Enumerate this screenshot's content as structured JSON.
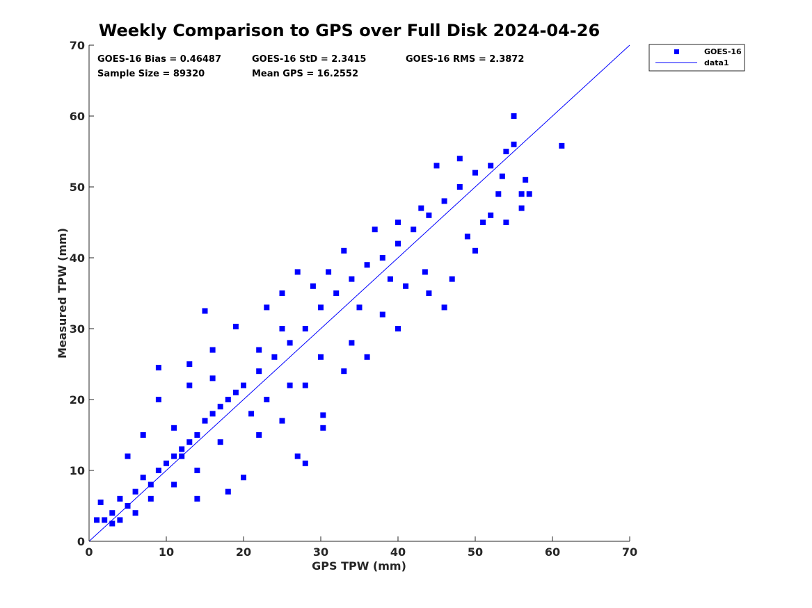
{
  "chart_data": {
    "type": "scatter",
    "title": "Weekly Comparison to GPS over Full Disk 2024-04-26",
    "xlabel": "GPS TPW (mm)",
    "ylabel": "Measured TPW (mm)",
    "xlim": [
      0,
      70
    ],
    "ylim": [
      0,
      70
    ],
    "xticks": [
      "0",
      "10",
      "20",
      "30",
      "40",
      "50",
      "60",
      "70"
    ],
    "yticks": [
      "0",
      "10",
      "20",
      "30",
      "40",
      "50",
      "60",
      "70"
    ],
    "grid": false,
    "legend_position": "outside-top-right",
    "legend": [
      "GOES-16",
      "data1"
    ],
    "colors": {
      "points": "#0000ff",
      "line": "#0000ff",
      "axes": "#262626"
    },
    "stats": {
      "bias": "GOES-16 Bias = 0.46487",
      "std": "GOES-16 StD = 2.3415",
      "rms": "GOES-16 RMS = 2.3872",
      "sample": "Sample Size = 89320",
      "mean": "Mean GPS = 16.2552"
    },
    "series": [
      {
        "name": "GOES-16",
        "marker": "square",
        "points": [
          [
            2,
            3
          ],
          [
            3,
            4
          ],
          [
            4,
            6
          ],
          [
            5,
            5
          ],
          [
            6,
            7
          ],
          [
            7,
            9
          ],
          [
            8,
            8
          ],
          [
            9,
            10
          ],
          [
            10,
            11
          ],
          [
            11,
            12
          ],
          [
            12,
            13
          ],
          [
            13,
            14
          ],
          [
            14,
            15
          ],
          [
            15,
            17
          ],
          [
            16,
            18
          ],
          [
            17,
            19
          ],
          [
            18,
            20
          ],
          [
            19,
            21
          ],
          [
            20,
            22
          ],
          [
            22,
            24
          ],
          [
            24,
            26
          ],
          [
            26,
            28
          ],
          [
            28,
            30
          ],
          [
            30,
            33
          ],
          [
            32,
            35
          ],
          [
            34,
            37
          ],
          [
            36,
            39
          ],
          [
            38,
            40
          ],
          [
            40,
            42
          ],
          [
            42,
            44
          ],
          [
            44,
            46
          ],
          [
            46,
            48
          ],
          [
            48,
            50
          ],
          [
            50,
            52
          ],
          [
            52,
            53
          ],
          [
            54,
            55
          ],
          [
            56,
            49
          ],
          [
            55,
            60
          ],
          [
            61.2,
            55.8
          ],
          [
            55,
            56
          ],
          [
            9,
            24.5
          ],
          [
            12,
            12
          ],
          [
            13,
            22
          ],
          [
            15,
            32.5
          ],
          [
            16,
            27
          ],
          [
            19,
            30.3
          ],
          [
            23,
            33
          ],
          [
            25,
            35
          ],
          [
            27,
            38
          ],
          [
            28,
            11
          ],
          [
            30.3,
            17.8
          ],
          [
            30.3,
            16
          ],
          [
            27,
            12
          ],
          [
            18,
            7
          ],
          [
            20,
            9
          ],
          [
            26,
            22
          ],
          [
            30,
            26
          ],
          [
            34,
            28
          ],
          [
            38,
            32
          ],
          [
            41,
            36
          ],
          [
            43.5,
            38
          ],
          [
            46,
            33
          ],
          [
            49,
            43
          ],
          [
            51,
            45
          ],
          [
            53,
            49
          ],
          [
            57,
            49
          ],
          [
            45,
            53
          ],
          [
            48,
            54
          ],
          [
            40,
            45
          ],
          [
            43,
            47
          ],
          [
            37,
            44
          ],
          [
            33,
            41
          ],
          [
            31,
            38
          ],
          [
            29,
            36
          ],
          [
            35,
            33
          ],
          [
            39,
            37
          ],
          [
            25,
            30
          ],
          [
            22,
            27
          ],
          [
            21,
            18
          ],
          [
            23,
            20
          ],
          [
            17,
            14
          ],
          [
            14,
            10
          ],
          [
            11,
            8
          ],
          [
            8,
            6
          ],
          [
            6,
            4
          ],
          [
            4,
            3
          ],
          [
            3,
            2.5
          ],
          [
            1,
            3
          ],
          [
            1.5,
            5.5
          ],
          [
            5,
            12
          ],
          [
            7,
            15
          ],
          [
            9,
            20
          ],
          [
            11,
            16
          ],
          [
            13,
            25
          ],
          [
            16,
            23
          ],
          [
            14,
            6
          ],
          [
            22,
            15
          ],
          [
            25,
            17
          ],
          [
            28,
            22
          ],
          [
            33,
            24
          ],
          [
            36,
            26
          ],
          [
            40,
            30
          ],
          [
            44,
            35
          ],
          [
            47,
            37
          ],
          [
            50,
            41
          ],
          [
            52,
            46
          ],
          [
            54,
            45
          ],
          [
            56.5,
            51
          ],
          [
            53.5,
            51.5
          ],
          [
            56,
            47
          ]
        ]
      },
      {
        "name": "data1",
        "type": "line",
        "points": [
          [
            0,
            0
          ],
          [
            70,
            70
          ]
        ]
      }
    ]
  }
}
